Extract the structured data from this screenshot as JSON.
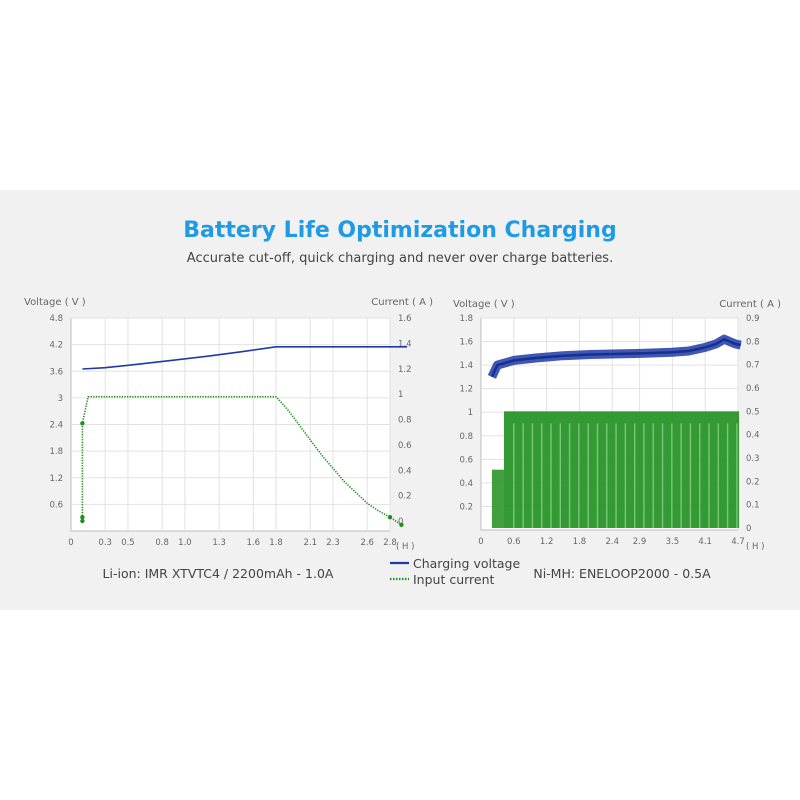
{
  "header": {
    "title": "Battery Life Optimization Charging",
    "subtitle": "Accurate cut-off, quick charging and never over charge batteries."
  },
  "colors": {
    "voltage": "#1f3aa8",
    "current": "#1e8f1e",
    "title": "#1e9be5"
  },
  "legend": {
    "voltage_label": "Charging voltage",
    "current_label": "Input current"
  },
  "chart_data": [
    {
      "type": "line",
      "caption": "Li-ion: IMR XTVTC4 / 2200mAh - 1.0A",
      "ylabel_left": "Voltage ( V )",
      "ylabel_right": "Current ( A )",
      "xlabel": "( H )",
      "x_ticks": [
        "0",
        "0.3",
        "0.5",
        "0.8",
        "1.0",
        "1.3",
        "1.6",
        "1.8",
        "2.1",
        "2.3",
        "2.6",
        "2.8"
      ],
      "y_left_ticks": [
        "4.8",
        "4.2",
        "3.6",
        "3",
        "2.4",
        "1.8",
        "1.2",
        "0.6"
      ],
      "y_right_ticks": [
        "1.6",
        "1.4",
        "1.2",
        "1",
        "0.8",
        "0.6",
        "0.4",
        "0.2",
        "0"
      ],
      "xlim": [
        0,
        2.8
      ],
      "ylim_left": [
        0,
        4.8
      ],
      "ylim_right": [
        0,
        1.6
      ],
      "grid": true,
      "series": [
        {
          "name": "Charging voltage",
          "axis": "left",
          "x": [
            0.1,
            0.3,
            0.6,
            0.9,
            1.2,
            1.5,
            1.8,
            2.1,
            2.4,
            2.7,
            2.95
          ],
          "y": [
            3.65,
            3.68,
            3.76,
            3.85,
            3.94,
            4.04,
            4.15,
            4.15,
            4.15,
            4.15,
            4.15
          ]
        },
        {
          "name": "Input current",
          "axis": "right",
          "x": [
            0.1,
            0.1,
            0.1,
            0.1,
            0.15,
            0.5,
            1.0,
            1.5,
            1.8,
            1.9,
            2.0,
            2.2,
            2.4,
            2.6,
            2.7,
            2.8,
            2.9
          ],
          "y": [
            0.0,
            0.03,
            0.13,
            0.77,
            0.98,
            0.98,
            0.98,
            0.98,
            0.98,
            0.88,
            0.76,
            0.52,
            0.31,
            0.14,
            0.08,
            0.03,
            -0.03
          ]
        }
      ]
    },
    {
      "type": "line",
      "caption": "Ni-MH: ENELOOP2000 - 0.5A",
      "ylabel_left": "Voltage ( V )",
      "ylabel_right": "Current ( A )",
      "xlabel": "( H )",
      "x_ticks": [
        "0",
        "0.6",
        "1.2",
        "1.8",
        "2.4",
        "2.9",
        "3.5",
        "4.1",
        "4.7"
      ],
      "y_left_ticks": [
        "1.8",
        "1.6",
        "1.4",
        "1.2",
        "1",
        "0.8",
        "0.6",
        "0.4",
        "0.2"
      ],
      "y_right_ticks": [
        "0.9",
        "0.8",
        "0.7",
        "0.6",
        "0.5",
        "0.4",
        "0.3",
        "0.2",
        "0.1",
        "0"
      ],
      "xlim": [
        0,
        4.7
      ],
      "ylim_left": [
        0,
        1.8
      ],
      "ylim_right": [
        0,
        0.9
      ],
      "grid": true,
      "series": [
        {
          "name": "Charging voltage",
          "axis": "left",
          "x": [
            0.2,
            0.3,
            0.6,
            1.0,
            1.5,
            2.0,
            2.5,
            3.0,
            3.5,
            3.8,
            4.1,
            4.3,
            4.45,
            4.55,
            4.65,
            4.75
          ],
          "y": [
            1.3,
            1.4,
            1.44,
            1.46,
            1.48,
            1.49,
            1.495,
            1.5,
            1.51,
            1.52,
            1.55,
            1.58,
            1.62,
            1.6,
            1.58,
            1.57
          ]
        },
        {
          "name": "Input current",
          "axis": "right",
          "x": [
            0.2,
            0.4,
            0.4,
            4.75
          ],
          "y": [
            0.0,
            0.25,
            0.0,
            0.0
          ],
          "pulse_amplitude": 0.5
        }
      ]
    }
  ]
}
